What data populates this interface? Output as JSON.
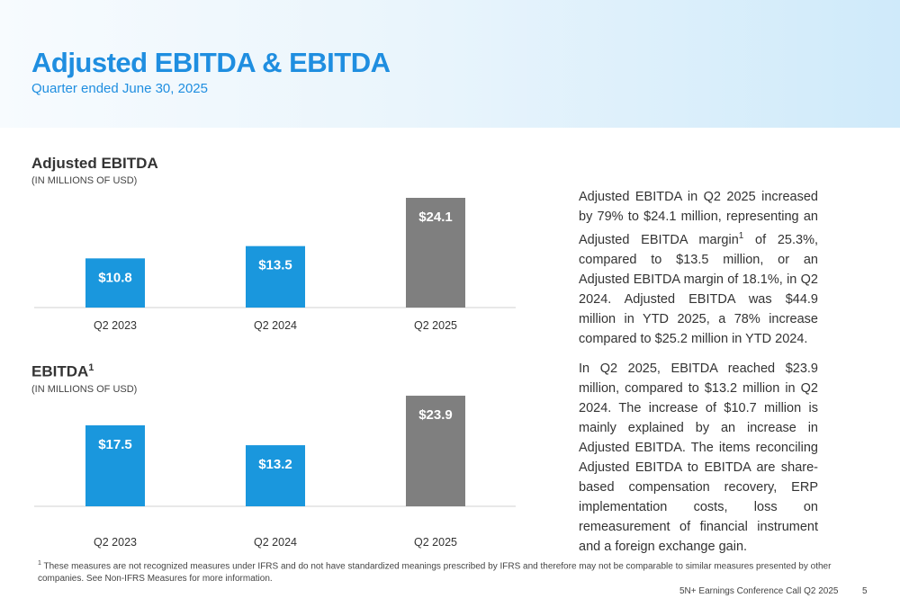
{
  "header": {
    "title": "Adjusted EBITDA & EBITDA",
    "subtitle": "Quarter ended June 30, 2025"
  },
  "colors": {
    "accent_blue": "#1f8ee0",
    "bar_blue": "#1a97dd",
    "bar_gray": "#7f7f7f"
  },
  "chart_data": [
    {
      "type": "bar",
      "title": "Adjusted EBITDA",
      "subtitle": "(IN MILLIONS OF USD)",
      "categories": [
        "Q2 2023",
        "Q2 2024",
        "Q2 2025"
      ],
      "values": [
        10.8,
        13.5,
        24.1
      ],
      "labels": [
        "$10.8",
        "$13.5",
        "$24.1"
      ],
      "bar_colors": [
        "#1a97dd",
        "#1a97dd",
        "#7f7f7f"
      ],
      "ylim": [
        0,
        26
      ]
    },
    {
      "type": "bar",
      "title": "EBITDA",
      "title_sup": "1",
      "subtitle": "(IN MILLIONS OF USD)",
      "categories": [
        "Q2 2023",
        "Q2 2024",
        "Q2 2025"
      ],
      "values": [
        17.5,
        13.2,
        23.9
      ],
      "labels": [
        "$17.5",
        "$13.2",
        "$23.9"
      ],
      "bar_colors": [
        "#1a97dd",
        "#1a97dd",
        "#7f7f7f"
      ],
      "ylim": [
        0,
        26
      ]
    }
  ],
  "body": {
    "p1_part1": "Adjusted EBITDA in Q2 2025 increased by 79% to $24.1 million, representing an Adjusted EBITDA margin",
    "p1_sup": "1",
    "p1_part2": " of 25.3%, compared to $13.5 million, or an Adjusted EBITDA margin of 18.1%, in Q2 2024. Adjusted EBITDA was $44.9 million in YTD 2025, a 78% increase compared to $25.2 million in YTD 2024.",
    "p2": "In Q2 2025, EBITDA reached $23.9 million, compared to $13.2 million in Q2 2024. The increase of $10.7 million is mainly explained by an increase in Adjusted EBITDA. The items reconciling Adjusted EBITDA to EBITDA are share-based compensation recovery, ERP implementation costs, loss on remeasurement of financial instrument and a foreign exchange gain."
  },
  "footnote": {
    "marker": "1",
    "text": "These measures are not recognized measures under IFRS and do not have standardized meanings prescribed by IFRS and therefore may not be comparable to similar measures presented by other companies. See Non-IFRS Measures for more information."
  },
  "footer": {
    "event": "5N+ Earnings Conference Call Q2 2025",
    "page_number": "5"
  }
}
